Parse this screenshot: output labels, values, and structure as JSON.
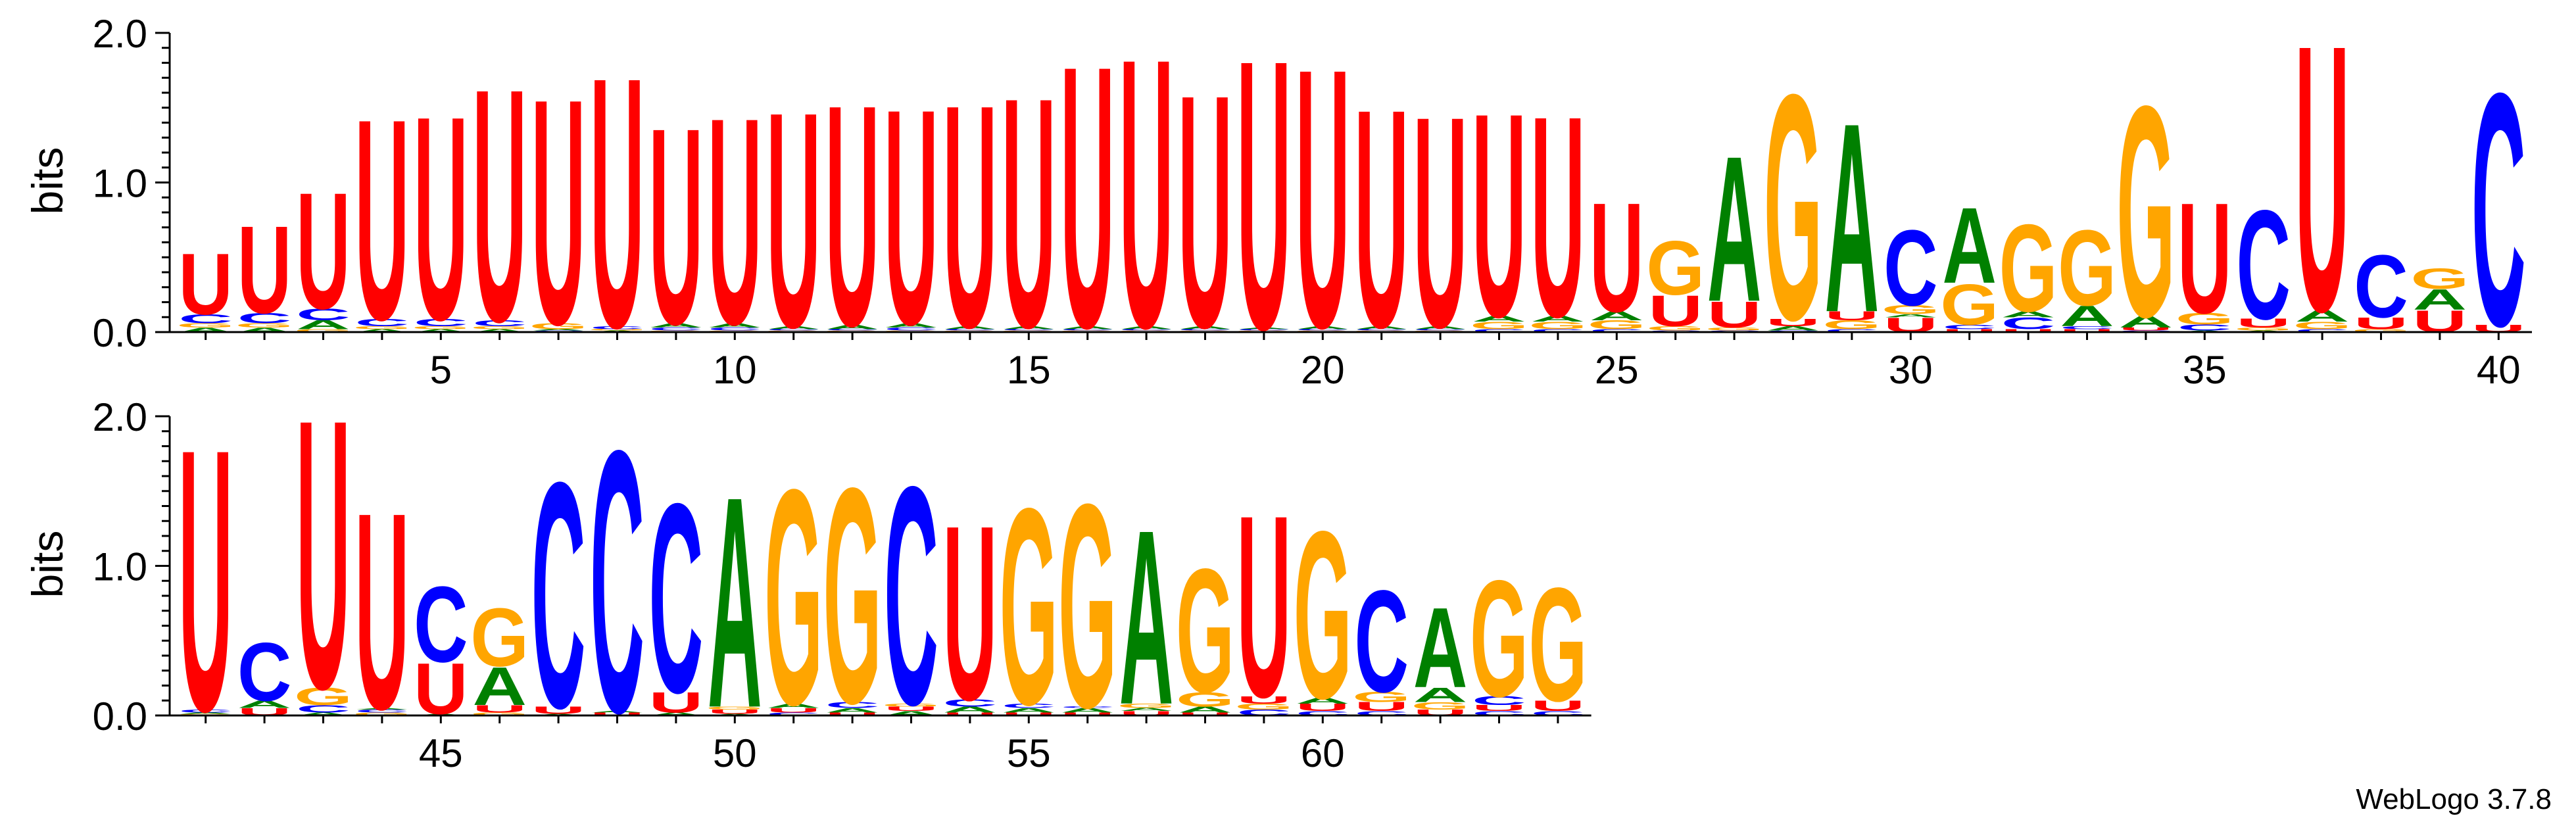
{
  "chart_data": {
    "type": "sequence-logo",
    "alphabet": [
      "A",
      "C",
      "G",
      "U"
    ],
    "colors": {
      "A": "#008000",
      "C": "#0000ff",
      "G": "#ffa500",
      "U": "#ff0000"
    },
    "ylabel": "bits",
    "ylim": [
      0,
      2.0
    ],
    "yticks": [
      "0.0",
      "1.0",
      "2.0"
    ],
    "credit": "WebLogo 3.7.8",
    "rows": [
      {
        "start": 1,
        "end": 40,
        "xticks": [
          5,
          10,
          15,
          20,
          25,
          30,
          35,
          40
        ]
      },
      {
        "start": 41,
        "end": 64,
        "xticks": [
          45,
          50,
          55,
          60
        ]
      }
    ],
    "positions": [
      {
        "pos": 1,
        "letters": [
          [
            "A",
            0.03
          ],
          [
            "G",
            0.03
          ],
          [
            "C",
            0.06
          ],
          [
            "U",
            0.42
          ]
        ]
      },
      {
        "pos": 2,
        "letters": [
          [
            "A",
            0.03
          ],
          [
            "G",
            0.03
          ],
          [
            "C",
            0.07
          ],
          [
            "U",
            0.6
          ]
        ]
      },
      {
        "pos": 3,
        "letters": [
          [
            "G",
            0.02
          ],
          [
            "A",
            0.06
          ],
          [
            "C",
            0.08
          ],
          [
            "U",
            0.8
          ]
        ]
      },
      {
        "pos": 4,
        "letters": [
          [
            "A",
            0.02
          ],
          [
            "G",
            0.02
          ],
          [
            "C",
            0.05
          ],
          [
            "U",
            1.38
          ]
        ]
      },
      {
        "pos": 5,
        "letters": [
          [
            "A",
            0.02
          ],
          [
            "G",
            0.02
          ],
          [
            "C",
            0.05
          ],
          [
            "U",
            1.4
          ]
        ]
      },
      {
        "pos": 6,
        "letters": [
          [
            "A",
            0.02
          ],
          [
            "G",
            0.02
          ],
          [
            "C",
            0.04
          ],
          [
            "U",
            1.6
          ]
        ]
      },
      {
        "pos": 7,
        "letters": [
          [
            "C",
            0.01
          ],
          [
            "A",
            0.01
          ],
          [
            "G",
            0.04
          ],
          [
            "U",
            1.55
          ]
        ]
      },
      {
        "pos": 8,
        "letters": [
          [
            "A",
            0.01
          ],
          [
            "G",
            0.01
          ],
          [
            "C",
            0.02
          ],
          [
            "U",
            1.72
          ]
        ]
      },
      {
        "pos": 9,
        "letters": [
          [
            "G",
            0.01
          ],
          [
            "C",
            0.02
          ],
          [
            "A",
            0.03
          ],
          [
            "U",
            1.35
          ]
        ]
      },
      {
        "pos": 10,
        "letters": [
          [
            "G",
            0.01
          ],
          [
            "C",
            0.02
          ],
          [
            "A",
            0.03
          ],
          [
            "U",
            1.42
          ]
        ]
      },
      {
        "pos": 11,
        "letters": [
          [
            "G",
            0.01
          ],
          [
            "C",
            0.01
          ],
          [
            "A",
            0.02
          ],
          [
            "U",
            1.48
          ]
        ]
      },
      {
        "pos": 12,
        "letters": [
          [
            "G",
            0.01
          ],
          [
            "C",
            0.01
          ],
          [
            "A",
            0.03
          ],
          [
            "U",
            1.52
          ]
        ]
      },
      {
        "pos": 13,
        "letters": [
          [
            "G",
            0.01
          ],
          [
            "C",
            0.02
          ],
          [
            "A",
            0.03
          ],
          [
            "U",
            1.48
          ]
        ]
      },
      {
        "pos": 14,
        "letters": [
          [
            "G",
            0.01
          ],
          [
            "C",
            0.01
          ],
          [
            "A",
            0.02
          ],
          [
            "U",
            1.53
          ]
        ]
      },
      {
        "pos": 15,
        "letters": [
          [
            "G",
            0.01
          ],
          [
            "C",
            0.01
          ],
          [
            "A",
            0.02
          ],
          [
            "U",
            1.58
          ]
        ]
      },
      {
        "pos": 16,
        "letters": [
          [
            "G",
            0.01
          ],
          [
            "C",
            0.01
          ],
          [
            "A",
            0.02
          ],
          [
            "U",
            1.8
          ]
        ]
      },
      {
        "pos": 17,
        "letters": [
          [
            "G",
            0.01
          ],
          [
            "C",
            0.01
          ],
          [
            "A",
            0.02
          ],
          [
            "U",
            1.85
          ]
        ]
      },
      {
        "pos": 18,
        "letters": [
          [
            "G",
            0.01
          ],
          [
            "C",
            0.01
          ],
          [
            "A",
            0.02
          ],
          [
            "U",
            1.6
          ]
        ]
      },
      {
        "pos": 19,
        "letters": [
          [
            "G",
            0.01
          ],
          [
            "C",
            0.01
          ],
          [
            "A",
            0.01
          ],
          [
            "U",
            1.85
          ]
        ]
      },
      {
        "pos": 20,
        "letters": [
          [
            "G",
            0.01
          ],
          [
            "C",
            0.01
          ],
          [
            "A",
            0.02
          ],
          [
            "U",
            1.78
          ]
        ]
      },
      {
        "pos": 21,
        "letters": [
          [
            "G",
            0.01
          ],
          [
            "C",
            0.01
          ],
          [
            "A",
            0.02
          ],
          [
            "U",
            1.5
          ]
        ]
      },
      {
        "pos": 22,
        "letters": [
          [
            "G",
            0.01
          ],
          [
            "C",
            0.01
          ],
          [
            "A",
            0.02
          ],
          [
            "U",
            1.45
          ]
        ]
      },
      {
        "pos": 23,
        "letters": [
          [
            "C",
            0.02
          ],
          [
            "G",
            0.05
          ],
          [
            "A",
            0.04
          ],
          [
            "U",
            1.4
          ]
        ]
      },
      {
        "pos": 24,
        "letters": [
          [
            "C",
            0.02
          ],
          [
            "G",
            0.05
          ],
          [
            "A",
            0.04
          ],
          [
            "U",
            1.38
          ]
        ]
      },
      {
        "pos": 25,
        "letters": [
          [
            "C",
            0.02
          ],
          [
            "G",
            0.06
          ],
          [
            "A",
            0.06
          ],
          [
            "U",
            0.75
          ]
        ]
      },
      {
        "pos": 26,
        "letters": [
          [
            "C",
            0.01
          ],
          [
            "G",
            0.03
          ],
          [
            "U",
            0.21
          ],
          [
            "G",
            0.37
          ]
        ]
      },
      {
        "pos": 27,
        "letters": [
          [
            "C",
            0.01
          ],
          [
            "G",
            0.02
          ],
          [
            "U",
            0.18
          ],
          [
            "A",
            1.0
          ]
        ]
      },
      {
        "pos": 28,
        "letters": [
          [
            "C",
            0.01
          ],
          [
            "A",
            0.03
          ],
          [
            "U",
            0.05
          ],
          [
            "G",
            1.55
          ]
        ]
      },
      {
        "pos": 29,
        "letters": [
          [
            "C",
            0.02
          ],
          [
            "G",
            0.06
          ],
          [
            "U",
            0.06
          ],
          [
            "A",
            1.3
          ]
        ]
      },
      {
        "pos": 30,
        "letters": [
          [
            "U",
            0.1
          ],
          [
            "A",
            0.02
          ],
          [
            "G",
            0.06
          ],
          [
            "C",
            0.52
          ]
        ]
      },
      {
        "pos": 31,
        "letters": [
          [
            "U",
            0.02
          ],
          [
            "C",
            0.03
          ],
          [
            "G",
            0.28
          ],
          [
            "A",
            0.52
          ]
        ]
      },
      {
        "pos": 32,
        "letters": [
          [
            "U",
            0.02
          ],
          [
            "C",
            0.08
          ],
          [
            "A",
            0.04
          ],
          [
            "G",
            0.6
          ]
        ]
      },
      {
        "pos": 33,
        "letters": [
          [
            "U",
            0.02
          ],
          [
            "C",
            0.02
          ],
          [
            "A",
            0.14
          ],
          [
            "G",
            0.52
          ]
        ]
      },
      {
        "pos": 34,
        "letters": [
          [
            "C",
            0.01
          ],
          [
            "U",
            0.02
          ],
          [
            "A",
            0.08
          ],
          [
            "G",
            1.45
          ]
        ]
      },
      {
        "pos": 35,
        "letters": [
          [
            "A",
            0.01
          ],
          [
            "C",
            0.04
          ],
          [
            "G",
            0.08
          ],
          [
            "U",
            0.76
          ]
        ]
      },
      {
        "pos": 36,
        "letters": [
          [
            "A",
            0.01
          ],
          [
            "G",
            0.02
          ],
          [
            "U",
            0.06
          ],
          [
            "C",
            0.75
          ]
        ]
      },
      {
        "pos": 37,
        "letters": [
          [
            "C",
            0.02
          ],
          [
            "G",
            0.05
          ],
          [
            "A",
            0.08
          ],
          [
            "U",
            1.83
          ]
        ]
      },
      {
        "pos": 38,
        "letters": [
          [
            "G",
            0.02
          ],
          [
            "U",
            0.08
          ],
          [
            "C",
            0.43
          ]
        ]
      },
      {
        "pos": 39,
        "letters": [
          [
            "U",
            0.15
          ],
          [
            "A",
            0.14
          ],
          [
            "G",
            0.14
          ]
        ]
      },
      {
        "pos": 40,
        "letters": [
          [
            "U",
            0.05
          ],
          [
            "C",
            1.6
          ]
        ]
      },
      {
        "pos": 41,
        "letters": [
          [
            "G",
            0.01
          ],
          [
            "A",
            0.01
          ],
          [
            "C",
            0.02
          ],
          [
            "U",
            1.8
          ]
        ]
      },
      {
        "pos": 42,
        "letters": [
          [
            "U",
            0.05
          ],
          [
            "A",
            0.05
          ],
          [
            "C",
            0.4
          ]
        ]
      },
      {
        "pos": 43,
        "letters": [
          [
            "A",
            0.02
          ],
          [
            "C",
            0.05
          ],
          [
            "G",
            0.12
          ],
          [
            "U",
            1.85
          ]
        ]
      },
      {
        "pos": 44,
        "letters": [
          [
            "G",
            0.02
          ],
          [
            "C",
            0.02
          ],
          [
            "A",
            0.01
          ],
          [
            "U",
            1.35
          ]
        ]
      },
      {
        "pos": 45,
        "letters": [
          [
            "A",
            0.01
          ],
          [
            "U",
            0.35
          ],
          [
            "C",
            0.52
          ]
        ]
      },
      {
        "pos": 46,
        "letters": [
          [
            "G",
            0.02
          ],
          [
            "U",
            0.05
          ],
          [
            "A",
            0.26
          ],
          [
            "G",
            0.4
          ]
        ]
      },
      {
        "pos": 47,
        "letters": [
          [
            "A",
            0.01
          ],
          [
            "U",
            0.05
          ],
          [
            "C",
            1.55
          ]
        ]
      },
      {
        "pos": 48,
        "letters": [
          [
            "U",
            0.02
          ],
          [
            "A",
            0.01
          ],
          [
            "C",
            1.8
          ]
        ]
      },
      {
        "pos": 49,
        "letters": [
          [
            "A",
            0.02
          ],
          [
            "U",
            0.14
          ],
          [
            "C",
            1.3
          ]
        ]
      },
      {
        "pos": 50,
        "letters": [
          [
            "A",
            0.01
          ],
          [
            "U",
            0.03
          ],
          [
            "G",
            0.02
          ],
          [
            "A",
            1.45
          ]
        ]
      },
      {
        "pos": 51,
        "letters": [
          [
            "C",
            0.02
          ],
          [
            "U",
            0.03
          ],
          [
            "A",
            0.03
          ],
          [
            "G",
            1.48
          ]
        ]
      },
      {
        "pos": 52,
        "letters": [
          [
            "U",
            0.02
          ],
          [
            "A",
            0.03
          ],
          [
            "C",
            0.04
          ],
          [
            "G",
            1.48
          ]
        ]
      },
      {
        "pos": 53,
        "letters": [
          [
            "A",
            0.03
          ],
          [
            "U",
            0.03
          ],
          [
            "G",
            0.02
          ],
          [
            "C",
            1.5
          ]
        ]
      },
      {
        "pos": 54,
        "letters": [
          [
            "U",
            0.02
          ],
          [
            "A",
            0.04
          ],
          [
            "C",
            0.05
          ],
          [
            "U",
            1.2
          ]
        ]
      },
      {
        "pos": 55,
        "letters": [
          [
            "U",
            0.02
          ],
          [
            "A",
            0.03
          ],
          [
            "C",
            0.03
          ],
          [
            "G",
            1.35
          ]
        ]
      },
      {
        "pos": 56,
        "letters": [
          [
            "U",
            0.02
          ],
          [
            "A",
            0.03
          ],
          [
            "C",
            0.01
          ],
          [
            "G",
            1.4
          ]
        ]
      },
      {
        "pos": 57,
        "letters": [
          [
            "U",
            0.03
          ],
          [
            "A",
            0.02
          ],
          [
            "G",
            0.03
          ],
          [
            "A",
            1.2
          ]
        ]
      },
      {
        "pos": 58,
        "letters": [
          [
            "U",
            0.02
          ],
          [
            "A",
            0.04
          ],
          [
            "G",
            0.1
          ],
          [
            "G",
            0.85
          ]
        ]
      },
      {
        "pos": 59,
        "letters": [
          [
            "C",
            0.04
          ],
          [
            "G",
            0.04
          ],
          [
            "U",
            0.05
          ],
          [
            "U",
            1.25
          ]
        ]
      },
      {
        "pos": 60,
        "letters": [
          [
            "C",
            0.03
          ],
          [
            "U",
            0.05
          ],
          [
            "A",
            0.04
          ],
          [
            "G",
            1.15
          ]
        ]
      },
      {
        "pos": 61,
        "letters": [
          [
            "C",
            0.03
          ],
          [
            "U",
            0.06
          ],
          [
            "G",
            0.07
          ],
          [
            "C",
            0.7
          ]
        ]
      },
      {
        "pos": 62,
        "letters": [
          [
            "U",
            0.04
          ],
          [
            "G",
            0.05
          ],
          [
            "A",
            0.1
          ],
          [
            "A",
            0.55
          ]
        ]
      },
      {
        "pos": 63,
        "letters": [
          [
            "C",
            0.03
          ],
          [
            "U",
            0.04
          ],
          [
            "C",
            0.06
          ],
          [
            "G",
            0.8
          ]
        ]
      },
      {
        "pos": 64,
        "letters": [
          [
            "C",
            0.03
          ],
          [
            "U",
            0.07
          ],
          [
            "G",
            0.78
          ]
        ]
      }
    ]
  }
}
